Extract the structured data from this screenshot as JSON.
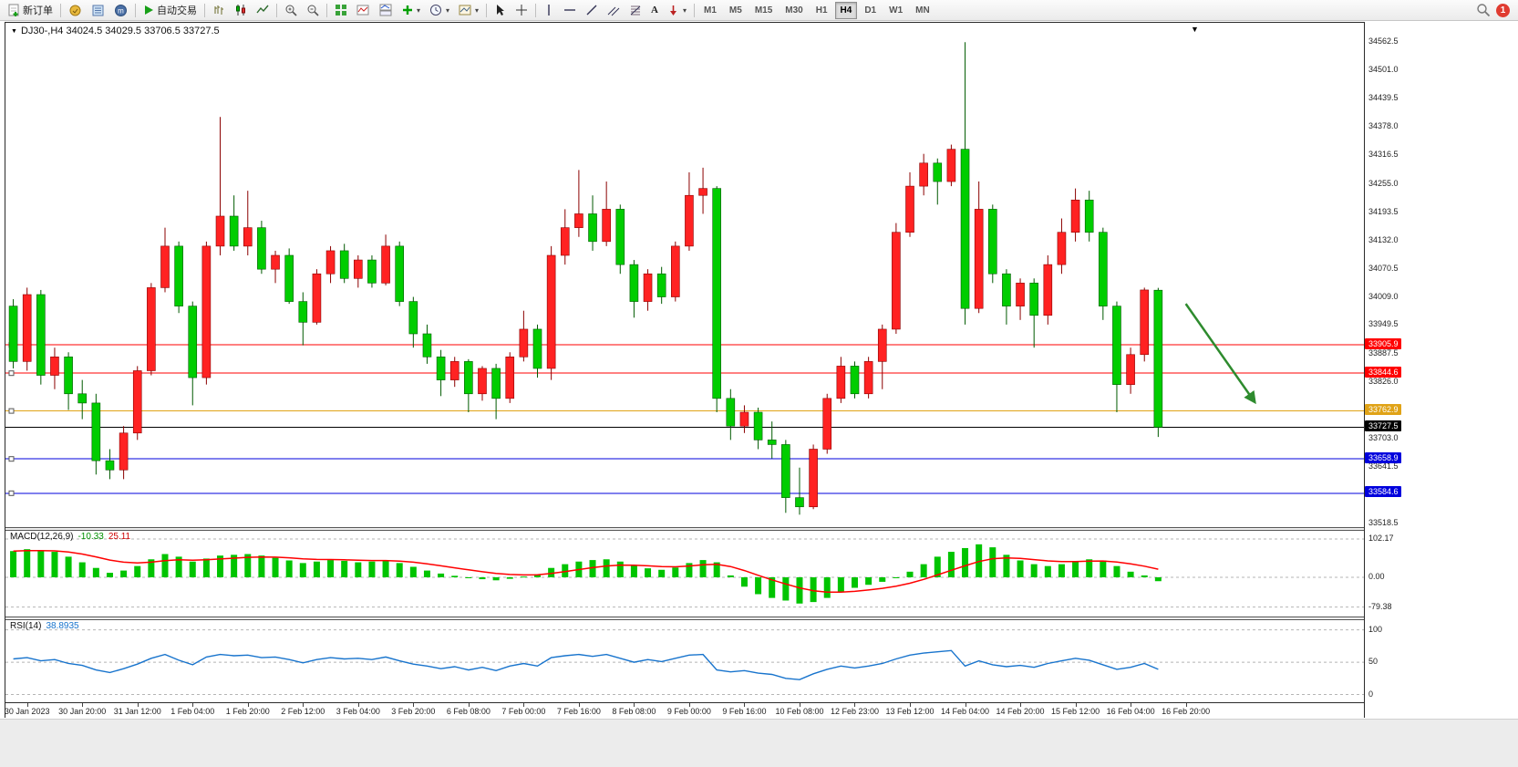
{
  "toolbar": {
    "new_order": "新订单",
    "auto_trading": "自动交易",
    "timeframes": [
      "M1",
      "M5",
      "M15",
      "M30",
      "H1",
      "H4",
      "D1",
      "W1",
      "MN"
    ],
    "active_timeframe": "H4",
    "notification_count": "1",
    "text_tool_label": "A"
  },
  "chart": {
    "title": "DJ30-,H4 34024.5 34029.5 33706.5 33727.5",
    "symbol": "DJ30-,H4"
  },
  "macd": {
    "label": "MACD(12,26,9)",
    "value_main": "-10.33",
    "value_signal": "25.11"
  },
  "rsi": {
    "label": "RSI(14)",
    "value": "38.8935"
  },
  "chart_data": {
    "type": "candlestick",
    "symbol": "DJ30-",
    "timeframe": "H4",
    "last_bar": {
      "open": 34024.5,
      "high": 34029.5,
      "low": 33706.5,
      "close": 33727.5
    },
    "up_color": "#ff2222",
    "down_color": "#00cd00",
    "candles": [
      [
        33990,
        34005,
        33855,
        33870
      ],
      [
        33870,
        34030,
        33850,
        34015
      ],
      [
        34015,
        34025,
        33820,
        33840
      ],
      [
        33840,
        33900,
        33810,
        33880
      ],
      [
        33880,
        33890,
        33765,
        33800
      ],
      [
        33800,
        33830,
        33745,
        33780
      ],
      [
        33780,
        33800,
        33625,
        33655
      ],
      [
        33655,
        33680,
        33615,
        33635
      ],
      [
        33635,
        33730,
        33615,
        33715
      ],
      [
        33715,
        33860,
        33700,
        33850
      ],
      [
        33850,
        34040,
        33840,
        34030
      ],
      [
        34030,
        34160,
        34020,
        34120
      ],
      [
        34120,
        34130,
        33975,
        33990
      ],
      [
        33990,
        34000,
        33775,
        33835
      ],
      [
        33835,
        34130,
        33820,
        34120
      ],
      [
        34120,
        34400,
        34100,
        34185
      ],
      [
        34185,
        34230,
        34110,
        34120
      ],
      [
        34120,
        34240,
        34100,
        34160
      ],
      [
        34160,
        34175,
        34060,
        34070
      ],
      [
        34070,
        34110,
        34040,
        34100
      ],
      [
        34100,
        34115,
        33995,
        34000
      ],
      [
        34000,
        34020,
        33905,
        33955
      ],
      [
        33955,
        34070,
        33950,
        34060
      ],
      [
        34060,
        34120,
        34040,
        34110
      ],
      [
        34110,
        34125,
        34040,
        34050
      ],
      [
        34050,
        34100,
        34030,
        34090
      ],
      [
        34090,
        34100,
        34030,
        34040
      ],
      [
        34040,
        34145,
        34035,
        34120
      ],
      [
        34120,
        34130,
        33990,
        34000
      ],
      [
        34000,
        34010,
        33900,
        33930
      ],
      [
        33930,
        33950,
        33865,
        33880
      ],
      [
        33880,
        33895,
        33795,
        33830
      ],
      [
        33830,
        33880,
        33815,
        33870
      ],
      [
        33870,
        33875,
        33760,
        33800
      ],
      [
        33800,
        33860,
        33785,
        33855
      ],
      [
        33855,
        33865,
        33745,
        33790
      ],
      [
        33790,
        33890,
        33780,
        33880
      ],
      [
        33880,
        33980,
        33870,
        33940
      ],
      [
        33940,
        33950,
        33835,
        33855
      ],
      [
        33855,
        34120,
        33830,
        34100
      ],
      [
        34100,
        34200,
        34080,
        34160
      ],
      [
        34160,
        34285,
        34140,
        34190
      ],
      [
        34190,
        34230,
        34110,
        34130
      ],
      [
        34130,
        34260,
        34120,
        34200
      ],
      [
        34200,
        34210,
        34060,
        34080
      ],
      [
        34080,
        34090,
        33965,
        34000
      ],
      [
        34000,
        34070,
        33980,
        34060
      ],
      [
        34060,
        34075,
        33995,
        34010
      ],
      [
        34010,
        34130,
        34000,
        34120
      ],
      [
        34120,
        34280,
        34110,
        34230
      ],
      [
        34230,
        34290,
        34190,
        34245
      ],
      [
        34245,
        34250,
        33760,
        33790
      ],
      [
        33790,
        33810,
        33700,
        33730
      ],
      [
        33730,
        33775,
        33715,
        33760
      ],
      [
        33760,
        33770,
        33680,
        33700
      ],
      [
        33700,
        33740,
        33660,
        33690
      ],
      [
        33690,
        33700,
        33542,
        33575
      ],
      [
        33575,
        33640,
        33538,
        33555
      ],
      [
        33555,
        33690,
        33550,
        33680
      ],
      [
        33680,
        33800,
        33670,
        33790
      ],
      [
        33790,
        33880,
        33780,
        33860
      ],
      [
        33860,
        33870,
        33790,
        33800
      ],
      [
        33800,
        33880,
        33790,
        33870
      ],
      [
        33870,
        33950,
        33810,
        33940
      ],
      [
        33940,
        34170,
        33930,
        34150
      ],
      [
        34150,
        34280,
        34140,
        34250
      ],
      [
        34250,
        34320,
        34230,
        34300
      ],
      [
        34300,
        34310,
        34210,
        34260
      ],
      [
        34260,
        34340,
        34250,
        34330
      ],
      [
        34330,
        34562,
        33950,
        33985
      ],
      [
        33985,
        34260,
        33975,
        34200
      ],
      [
        34200,
        34210,
        34040,
        34060
      ],
      [
        34060,
        34070,
        33950,
        33990
      ],
      [
        33990,
        34050,
        33960,
        34040
      ],
      [
        34040,
        34050,
        33900,
        33970
      ],
      [
        33970,
        34100,
        33950,
        34080
      ],
      [
        34080,
        34180,
        34060,
        34150
      ],
      [
        34150,
        34245,
        34130,
        34220
      ],
      [
        34220,
        34240,
        34130,
        34150
      ],
      [
        34150,
        34160,
        33960,
        33990
      ],
      [
        33990,
        34000,
        33760,
        33820
      ],
      [
        33820,
        33900,
        33800,
        33885
      ],
      [
        33885,
        34030,
        33870,
        34025
      ],
      [
        34024.5,
        34029.5,
        33706.5,
        33727.5
      ]
    ],
    "hlines": [
      {
        "price": 33905.9,
        "color": "#ff0000",
        "label": "33905.9"
      },
      {
        "price": 33844.6,
        "color": "#ff0000",
        "label": "33844.6"
      },
      {
        "price": 33762.9,
        "color": "#e0a317",
        "label": "33762.9"
      },
      {
        "price": 33727.5,
        "color": "#000000",
        "label": "33727.5"
      },
      {
        "price": 33658.9,
        "color": "#0000dd",
        "label": "33658.9"
      },
      {
        "price": 33584.6,
        "color": "#0000dd",
        "label": "33584.6"
      }
    ],
    "price_axis_labels": [
      {
        "text": "34562.5",
        "value": 34562.5
      },
      {
        "text": "34501.0",
        "value": 34501.0
      },
      {
        "text": "34439.5",
        "value": 34439.5
      },
      {
        "text": "34378.0",
        "value": 34378.0
      },
      {
        "text": "34316.5",
        "value": 34316.5
      },
      {
        "text": "34255.0",
        "value": 34255.0
      },
      {
        "text": "34193.5",
        "value": 34193.5
      },
      {
        "text": "34132.0",
        "value": 34132.0
      },
      {
        "text": "34070.5",
        "value": 34070.5
      },
      {
        "text": "34009.0",
        "value": 34009.0
      },
      {
        "text": "33949.5",
        "value": 33949.5
      },
      {
        "text": "33887.5",
        "value": 33887.5
      },
      {
        "text": "33826.0",
        "value": 33826.0
      },
      {
        "text": "33703.0",
        "value": 33703.0
      },
      {
        "text": "33641.5",
        "value": 33641.5
      },
      {
        "text": "33518.5",
        "value": 33518.5
      }
    ],
    "time_axis": [
      "30 Jan 2023",
      "30 Jan 20:00",
      "31 Jan 12:00",
      "1 Feb 04:00",
      "1 Feb 20:00",
      "2 Feb 12:00",
      "3 Feb 04:00",
      "3 Feb 20:00",
      "6 Feb 08:00",
      "7 Feb 00:00",
      "7 Feb 16:00",
      "8 Feb 08:00",
      "9 Feb 00:00",
      "9 Feb 16:00",
      "10 Feb 08:00",
      "12 Feb 23:00",
      "13 Feb 12:00",
      "14 Feb 04:00",
      "14 Feb 20:00",
      "15 Feb 12:00",
      "16 Feb 04:00",
      "16 Feb 20:00"
    ],
    "macd": {
      "main": [
        70,
        75,
        72,
        68,
        55,
        40,
        25,
        12,
        18,
        30,
        48,
        62,
        55,
        42,
        50,
        58,
        60,
        62,
        58,
        52,
        45,
        38,
        42,
        46,
        44,
        40,
        42,
        45,
        38,
        28,
        18,
        10,
        4,
        -2,
        -5,
        -8,
        -4,
        2,
        8,
        25,
        35,
        42,
        46,
        48,
        42,
        32,
        24,
        20,
        26,
        38,
        46,
        40,
        5,
        -25,
        -45,
        -55,
        -62,
        -70,
        -66,
        -55,
        -40,
        -28,
        -20,
        -12,
        0,
        15,
        35,
        55,
        68,
        78,
        88,
        80,
        60,
        45,
        35,
        30,
        35,
        42,
        48,
        45,
        30,
        15,
        5,
        -10.33
      ],
      "axis_labels": [
        {
          "text": "102.17",
          "value": 102.17
        },
        {
          "text": "0.00",
          "value": 0
        },
        {
          "text": "-79.38",
          "value": -79.38
        }
      ],
      "histogram_color": "#00c400",
      "signal_color": "#ff0000"
    },
    "rsi": {
      "values": [
        55,
        57,
        52,
        54,
        48,
        45,
        38,
        34,
        40,
        47,
        56,
        62,
        53,
        46,
        58,
        62,
        60,
        61,
        57,
        58,
        54,
        49,
        54,
        57,
        55,
        56,
        54,
        58,
        52,
        47,
        44,
        40,
        43,
        38,
        42,
        37,
        44,
        48,
        44,
        57,
        60,
        62,
        59,
        62,
        56,
        50,
        54,
        51,
        56,
        61,
        62,
        38,
        35,
        37,
        33,
        31,
        25,
        23,
        32,
        39,
        44,
        41,
        44,
        48,
        55,
        61,
        64,
        66,
        68,
        44,
        52,
        46,
        43,
        45,
        42,
        48,
        52,
        56,
        53,
        46,
        39,
        42,
        48,
        38.89
      ],
      "axis_labels": [
        {
          "text": "100",
          "value": 100
        },
        {
          "text": "50",
          "value": 50
        },
        {
          "text": "0",
          "value": 0
        }
      ],
      "line_color": "#1874cd"
    },
    "arrow": {
      "from_bar": 85,
      "from_price": 33995,
      "to_bar": 90,
      "to_price": 33782,
      "color": "#2e8b2e"
    }
  }
}
